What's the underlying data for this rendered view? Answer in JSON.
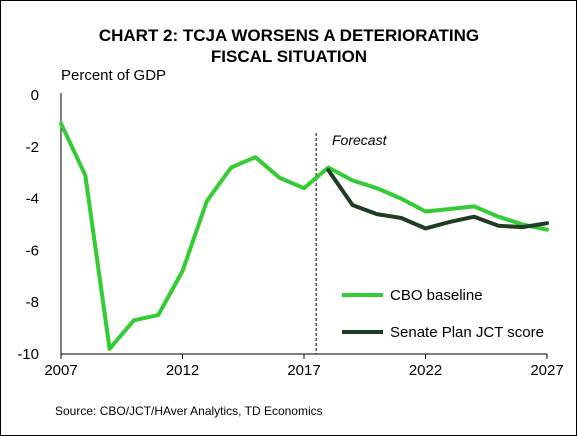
{
  "chart_data": {
    "type": "line",
    "title_lines": [
      "CHART 2: TCJA WORSENS A DETERIORATING",
      "FISCAL SITUATION"
    ],
    "ylabel": "Percent of GDP",
    "xlabel": "",
    "xlim": [
      2007,
      2027
    ],
    "ylim": [
      -10,
      0
    ],
    "x_ticks": [
      "2007",
      "2012",
      "2017",
      "2022",
      "2027"
    ],
    "y_ticks": [
      "0",
      "-2",
      "-4",
      "-6",
      "-8",
      "-10"
    ],
    "annotation": {
      "text": "Forecast",
      "divider_x": 2017.5
    },
    "series": [
      {
        "name": "CBO baseline",
        "color": "#33cc33",
        "x": [
          2007,
          2008,
          2009,
          2010,
          2011,
          2012,
          2013,
          2014,
          2015,
          2016,
          2017,
          2018,
          2019,
          2020,
          2021,
          2022,
          2023,
          2024,
          2025,
          2026,
          2027
        ],
        "values": [
          -1.1,
          -3.1,
          -9.8,
          -8.7,
          -8.5,
          -6.8,
          -4.1,
          -2.8,
          -2.4,
          -3.2,
          -3.6,
          -2.8,
          -3.3,
          -3.6,
          -4.0,
          -4.5,
          -4.4,
          -4.3,
          -4.7,
          -5.0,
          -5.2
        ]
      },
      {
        "name": "Senate Plan JCT score",
        "color": "#1f3d22",
        "x": [
          2018,
          2019,
          2020,
          2021,
          2022,
          2023,
          2024,
          2025,
          2026,
          2027
        ],
        "values": [
          -2.9,
          -4.25,
          -4.6,
          -4.75,
          -5.15,
          -4.9,
          -4.7,
          -5.05,
          -5.1,
          -4.95
        ]
      }
    ],
    "legend_position": "lower-right",
    "grid": false
  },
  "source": "Source: CBO/JCT/HAver Analytics, TD Economics"
}
